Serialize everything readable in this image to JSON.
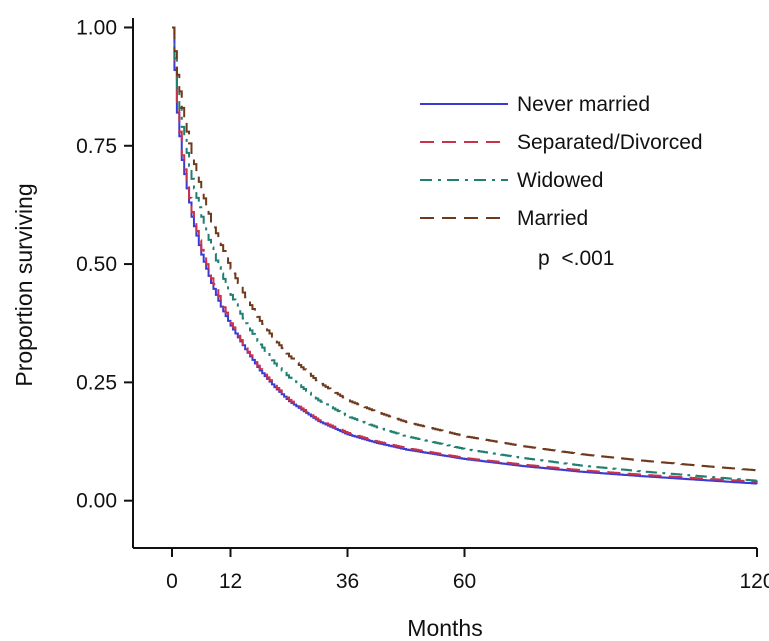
{
  "chart_data": {
    "type": "line",
    "title": "",
    "xlabel": "Months",
    "ylabel": "Proportion surviving",
    "xlim": [
      -8,
      120
    ],
    "ylim": [
      -0.1,
      1.02
    ],
    "xticks": [
      0,
      12,
      36,
      60,
      120
    ],
    "xtick_labels": [
      "0",
      "12",
      "36",
      "60",
      "120"
    ],
    "yticks": [
      0,
      0.25,
      0.5,
      0.75,
      1.0
    ],
    "ytick_labels": [
      "0.00",
      "0.25",
      "0.50",
      "0.75",
      "1.00"
    ],
    "grid": false,
    "legend_position": "top-right",
    "annotation": "p  <.001",
    "series": [
      {
        "name": "Never married",
        "color": "#3b3bd4",
        "dash": "solid",
        "x": [
          0,
          1,
          2,
          4,
          6,
          8,
          10,
          12,
          15,
          18,
          21,
          24,
          30,
          36,
          42,
          48,
          60,
          72,
          84,
          96,
          108,
          120
        ],
        "y": [
          1.0,
          0.82,
          0.72,
          0.6,
          0.52,
          0.46,
          0.41,
          0.37,
          0.32,
          0.275,
          0.24,
          0.21,
          0.168,
          0.14,
          0.122,
          0.108,
          0.088,
          0.073,
          0.061,
          0.052,
          0.044,
          0.036
        ]
      },
      {
        "name": "Separated/Divorced",
        "color": "#c8324a",
        "dash": "long-dash",
        "x": [
          0,
          1,
          2,
          4,
          6,
          8,
          10,
          12,
          15,
          18,
          21,
          24,
          30,
          36,
          42,
          48,
          60,
          72,
          84,
          96,
          108,
          120
        ],
        "y": [
          1.0,
          0.83,
          0.73,
          0.61,
          0.53,
          0.47,
          0.42,
          0.375,
          0.322,
          0.278,
          0.243,
          0.213,
          0.17,
          0.143,
          0.125,
          0.111,
          0.09,
          0.076,
          0.064,
          0.055,
          0.047,
          0.04
        ]
      },
      {
        "name": "Widowed",
        "color": "#1f7f70",
        "dash": "dash-dot",
        "x": [
          0,
          1,
          2,
          4,
          6,
          8,
          10,
          12,
          15,
          18,
          21,
          24,
          30,
          36,
          42,
          48,
          60,
          72,
          84,
          96,
          108,
          120
        ],
        "y": [
          1.0,
          0.87,
          0.79,
          0.68,
          0.6,
          0.535,
          0.48,
          0.435,
          0.375,
          0.33,
          0.29,
          0.26,
          0.212,
          0.178,
          0.155,
          0.136,
          0.109,
          0.09,
          0.074,
          0.062,
          0.052,
          0.042
        ]
      },
      {
        "name": "Married",
        "color": "#6e3a1c",
        "dash": "long-dash",
        "x": [
          0,
          1,
          2,
          4,
          6,
          8,
          10,
          12,
          15,
          18,
          21,
          24,
          30,
          36,
          42,
          48,
          60,
          72,
          84,
          96,
          108,
          120
        ],
        "y": [
          1.0,
          0.9,
          0.83,
          0.73,
          0.655,
          0.59,
          0.54,
          0.49,
          0.43,
          0.38,
          0.34,
          0.305,
          0.25,
          0.212,
          0.187,
          0.166,
          0.136,
          0.115,
          0.098,
          0.085,
          0.074,
          0.064
        ]
      }
    ]
  }
}
